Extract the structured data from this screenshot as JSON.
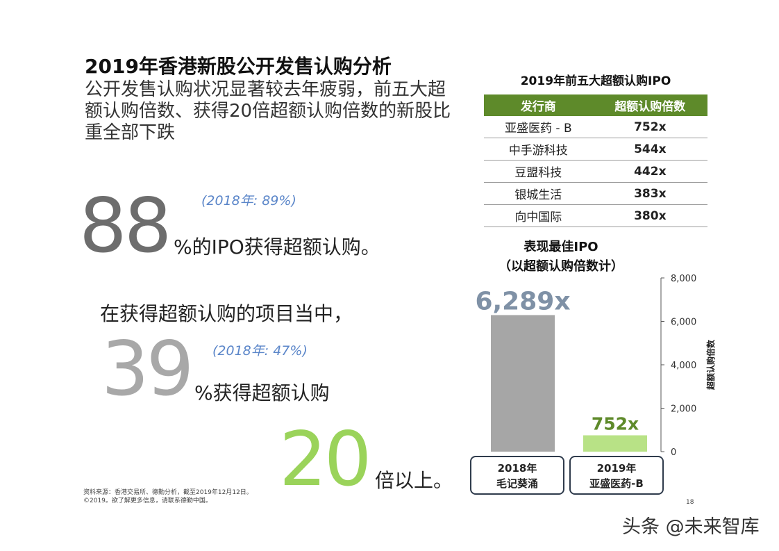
{
  "header": {
    "title": "2019年香港新股公开发售认购分析",
    "subtitle": "公开发售认购状况显著较去年疲弱，前五大超额认购倍数、获得20倍超额认购倍数的新股比重全部下跌"
  },
  "stats": {
    "s1": {
      "value": "88",
      "prior": "(2018年: 89%)",
      "text": "%的IPO获得超额认购。"
    },
    "among": "在获得超额认购的项目当中，",
    "s2": {
      "value": "39",
      "prior": "(2018年: 47%)",
      "text": "%获得超额认购"
    },
    "s3": {
      "value": "20",
      "text": "倍以上。"
    }
  },
  "top5": {
    "title": "2019年前五大超额认购IPO",
    "headers": [
      "发行商",
      "超额认购倍数"
    ],
    "rows": [
      {
        "issuer": "亚盛医药 - B",
        "multiple": "752x"
      },
      {
        "issuer": "中手游科技",
        "multiple": "544x"
      },
      {
        "issuer": "豆盟科技",
        "multiple": "442x"
      },
      {
        "issuer": "银城生活",
        "multiple": "383x"
      },
      {
        "issuer": "向中国际",
        "multiple": "380x"
      }
    ]
  },
  "chart_title_line1": "表现最佳IPO",
  "chart_title_line2": "（以超额认购倍数计）",
  "chart_data": {
    "type": "bar",
    "title": "表现最佳IPO（以超额认购倍数计）",
    "categories": [
      {
        "line1": "2018年",
        "line2": "毛记葵涌"
      },
      {
        "line1": "2019年",
        "line2": "亚盛医药-B"
      }
    ],
    "values": [
      6289,
      752
    ],
    "value_labels": [
      "6,289x",
      "752x"
    ],
    "ylabel": "超额认购倍数",
    "ylim": [
      0,
      8000
    ],
    "yticks": [
      0,
      2000,
      4000,
      6000,
      8000
    ],
    "ytick_labels": [
      "0",
      "2,000",
      "4,000",
      "6,000",
      "8,000"
    ],
    "colors": [
      "#a6a6a6",
      "#b8e286"
    ],
    "label_colors": [
      "#7f91a6",
      "#5e8a2a"
    ],
    "grid": false
  },
  "footer": {
    "source": "资料来源：香港交易所、德勤分析，截至2019年12月12日。",
    "copyright": "©2019。欲了解更多信息，请联系德勤中国。",
    "page": "18",
    "watermark": "头条 @未来智库"
  }
}
